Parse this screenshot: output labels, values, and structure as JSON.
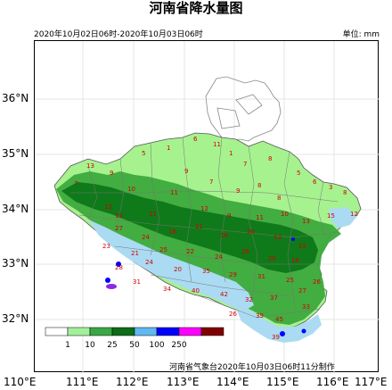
{
  "title": "河南省降水量图",
  "period": "2020年10月02日06时-2020年10月03日06时",
  "unit": "单位: mm",
  "credit": "河南省气象台2020年10月03日06时11分制作",
  "lat_labels": [
    "36°N",
    "35°N",
    "34°N",
    "33°N",
    "32°N"
  ],
  "lon_labels": [
    "110°E",
    "111°E",
    "112°E",
    "113°E",
    "114°E",
    "115°E",
    "116°E",
    "117°E"
  ],
  "legend": {
    "thresholds": [
      "1",
      "10",
      "25",
      "50",
      "100",
      "250"
    ],
    "colors": [
      "#ffffff",
      "#a3f09a",
      "#3aa842",
      "#0c6e18",
      "#61b8f0",
      "#0000fe",
      "#ff00ff",
      "#800000"
    ]
  },
  "colors": {
    "light_green": "#a6f28f",
    "green": "#3ca93c",
    "dark_green": "#0f7a1a",
    "light_blue": "#aadbf2",
    "blue": "#0000ff",
    "purple": "#fa00fa",
    "boundary": "#555555",
    "station_text": "#d40000"
  },
  "station_values": [
    "1",
    "3",
    "5",
    "6",
    "7",
    "8",
    "9",
    "10",
    "11",
    "12",
    "13",
    "15",
    "18",
    "20",
    "21",
    "22",
    "23",
    "24",
    "25",
    "26",
    "27",
    "28",
    "29",
    "31",
    "32",
    "33",
    "34",
    "35",
    "37",
    "39",
    "40",
    "42",
    "45"
  ]
}
